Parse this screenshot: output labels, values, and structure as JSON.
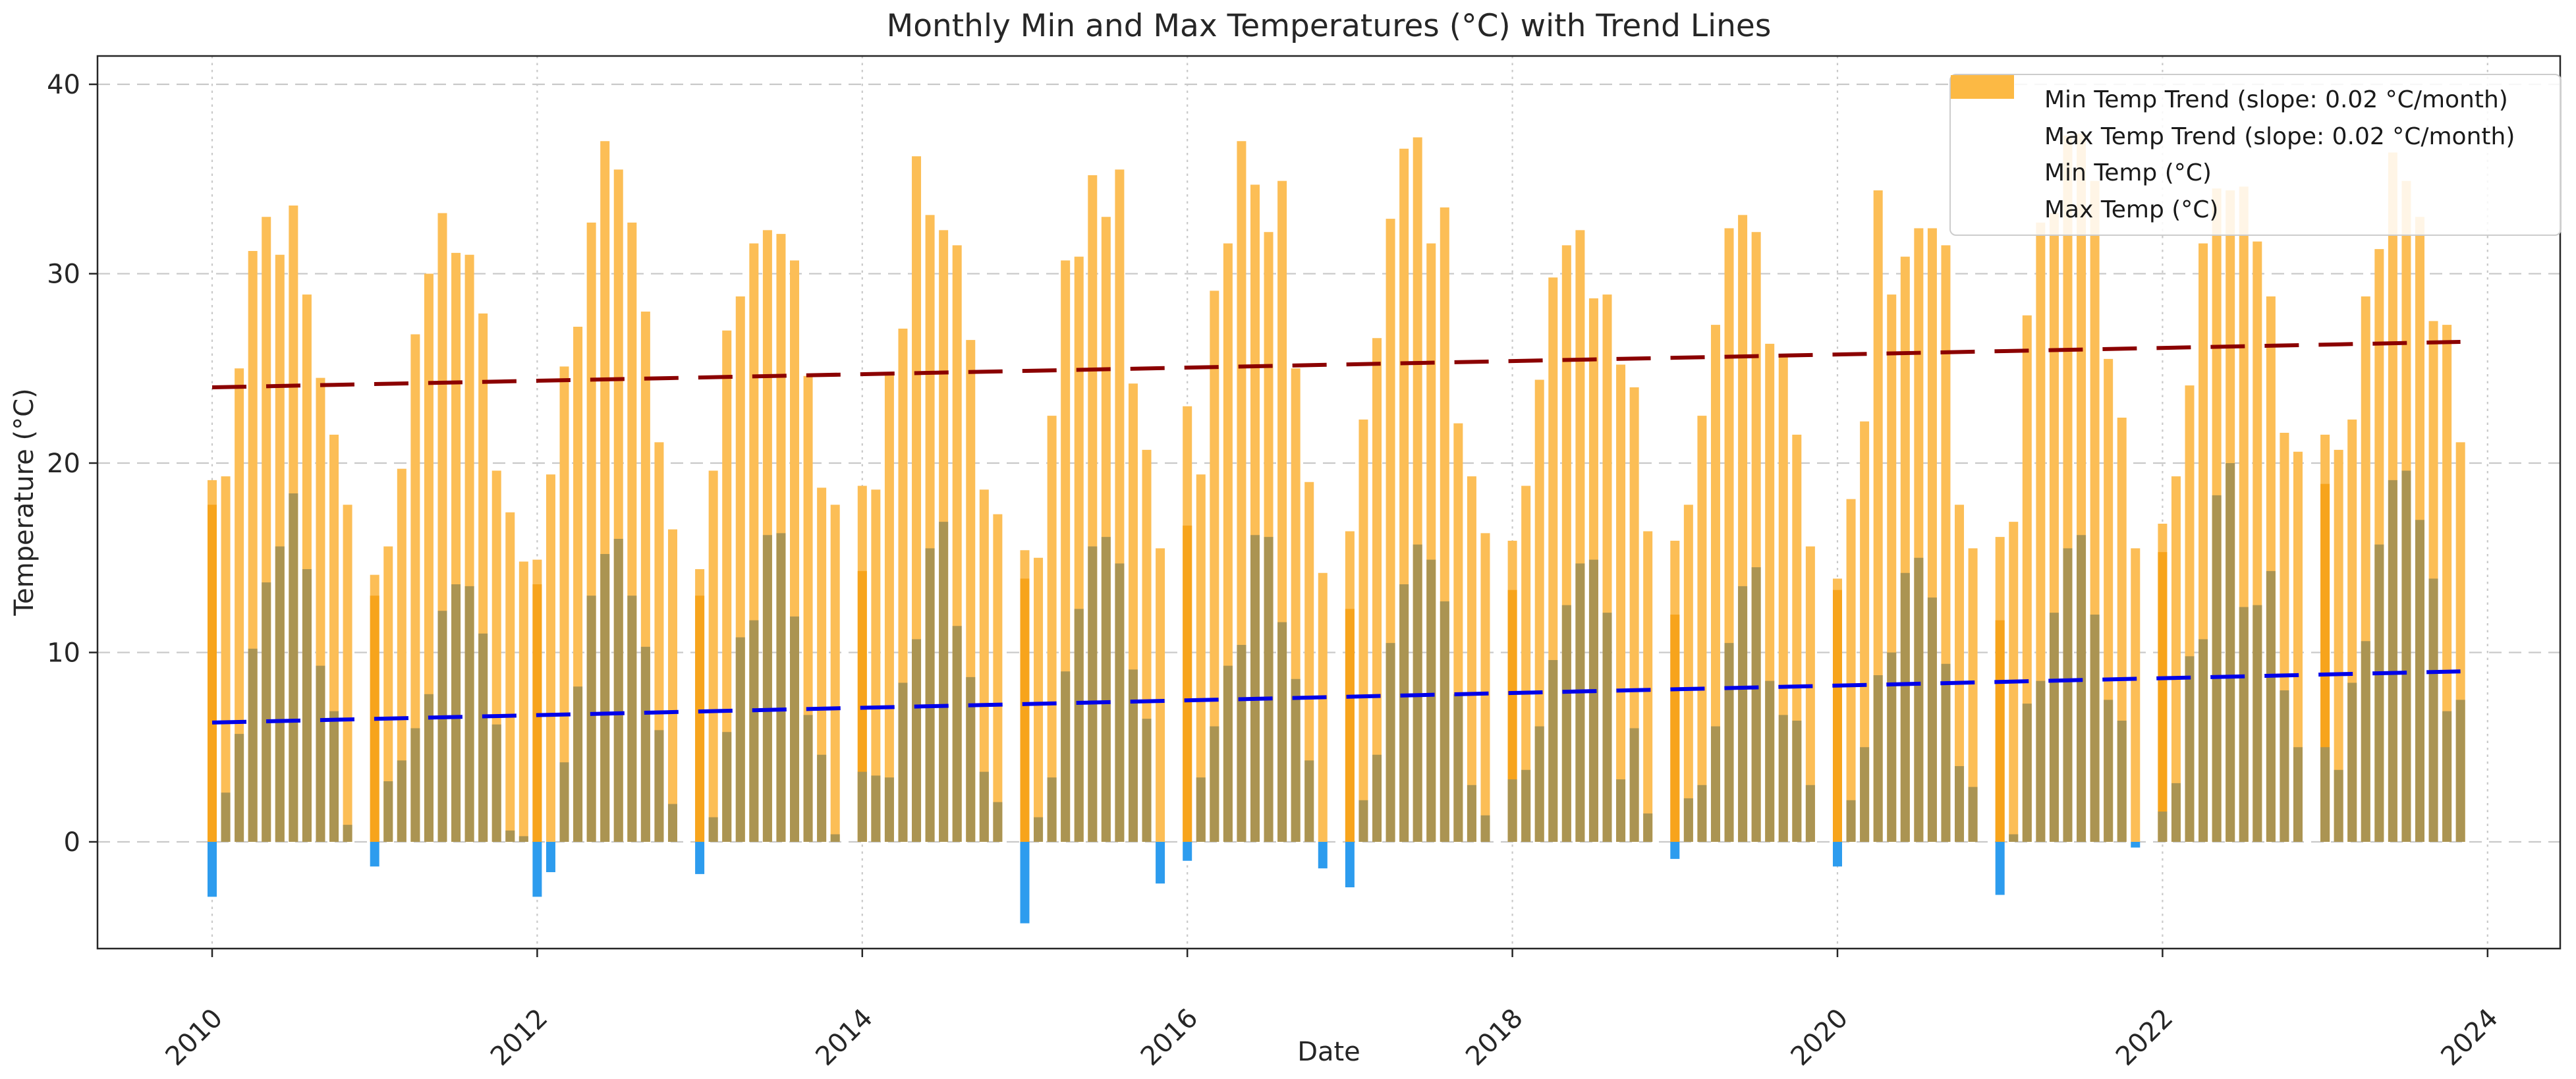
{
  "title": "Monthly Min and Max Temperatures (°C) with Trend Lines",
  "xlabel": "Date",
  "ylabel": "Temperature (°C)",
  "legend": {
    "items": [
      {
        "type": "dash",
        "color": "#0000e8",
        "label": "Min Temp Trend (slope: 0.02 °C/month)"
      },
      {
        "type": "dash",
        "color": "#8b0000",
        "label": "Max Temp Trend (slope: 0.02 °C/month)"
      },
      {
        "type": "patch",
        "color": "#2d9cee",
        "label": "Min Temp (°C)"
      },
      {
        "type": "patch",
        "color": "#fcb944",
        "label": "Max Temp (°C)"
      }
    ]
  },
  "colors": {
    "max_bar": "#fcbe56",
    "max_bar_overlap": "#f7a41c",
    "min_bar_positive": "#ab9452",
    "min_bar_negative": "#2d9cee",
    "min_trend": "#0000e8",
    "max_trend": "#8b0000",
    "grid": "#c9c9c9",
    "spine": "#262626",
    "text": "#262626"
  },
  "chart_data": {
    "type": "bar",
    "title": "Monthly Min and Max Temperatures (°C) with Trend Lines",
    "xlabel": "Date",
    "ylabel": "Temperature (°C)",
    "x_tick_labels": [
      "2010",
      "2012",
      "2014",
      "2016",
      "2018",
      "2020",
      "2022",
      "2024"
    ],
    "x_ticks": [
      2010,
      2012,
      2014,
      2016,
      2018,
      2020,
      2022,
      2024
    ],
    "y_ticks": [
      0,
      10,
      20,
      30,
      40
    ],
    "xlim": [
      2009.3,
      2024.45
    ],
    "ylim": [
      -5.6,
      41.5
    ],
    "grid": "dashed horizontal at y ticks, dotted vertical at x ticks",
    "legend_position": "upper right",
    "series_note": "max = Max Temp bar top (°C); min = Min Temp bar top (°C, olive where overlapping max bar, blue where negative); ovl = darker double-orange overlap segment on January bars; null = no bar drawn (missing December)",
    "months": [
      {
        "d": "2010-01",
        "max": 19.1,
        "min": -2.9,
        "ovl": 17.8
      },
      {
        "d": "2010-02",
        "max": 19.3,
        "min": 2.6
      },
      {
        "d": "2010-03",
        "max": 25.0,
        "min": 5.7
      },
      {
        "d": "2010-04",
        "max": 31.2,
        "min": 10.2
      },
      {
        "d": "2010-05",
        "max": 33.0,
        "min": 13.7
      },
      {
        "d": "2010-06",
        "max": 31.0,
        "min": 15.6
      },
      {
        "d": "2010-07",
        "max": 33.6,
        "min": 18.4
      },
      {
        "d": "2010-08",
        "max": 28.9,
        "min": 14.4
      },
      {
        "d": "2010-09",
        "max": 24.5,
        "min": 9.3
      },
      {
        "d": "2010-10",
        "max": 21.5,
        "min": 6.9
      },
      {
        "d": "2010-11",
        "max": 17.8,
        "min": 0.9
      },
      {
        "d": "2010-12",
        "max": null,
        "min": null
      },
      {
        "d": "2011-01",
        "max": 14.1,
        "min": -1.3,
        "ovl": 13.0
      },
      {
        "d": "2011-02",
        "max": 15.6,
        "min": 3.2
      },
      {
        "d": "2011-03",
        "max": 19.7,
        "min": 4.3
      },
      {
        "d": "2011-04",
        "max": 26.8,
        "min": 6.0
      },
      {
        "d": "2011-05",
        "max": 30.0,
        "min": 7.8
      },
      {
        "d": "2011-06",
        "max": 33.2,
        "min": 12.2
      },
      {
        "d": "2011-07",
        "max": 31.1,
        "min": 13.6
      },
      {
        "d": "2011-08",
        "max": 31.0,
        "min": 13.5
      },
      {
        "d": "2011-09",
        "max": 27.9,
        "min": 11.0
      },
      {
        "d": "2011-10",
        "max": 19.6,
        "min": 6.2
      },
      {
        "d": "2011-11",
        "max": 17.4,
        "min": 0.6
      },
      {
        "d": "2011-12",
        "max": 14.8,
        "min": 0.3
      },
      {
        "d": "2012-01",
        "max": 14.9,
        "min": -2.9,
        "ovl": 13.6
      },
      {
        "d": "2012-02",
        "max": 19.4,
        "min": -1.6
      },
      {
        "d": "2012-03",
        "max": 25.1,
        "min": 4.2
      },
      {
        "d": "2012-04",
        "max": 27.2,
        "min": 8.2
      },
      {
        "d": "2012-05",
        "max": 32.7,
        "min": 13.0
      },
      {
        "d": "2012-06",
        "max": 37.0,
        "min": 15.2
      },
      {
        "d": "2012-07",
        "max": 35.5,
        "min": 16.0
      },
      {
        "d": "2012-08",
        "max": 32.7,
        "min": 13.0
      },
      {
        "d": "2012-09",
        "max": 28.0,
        "min": 10.3
      },
      {
        "d": "2012-10",
        "max": 21.1,
        "min": 5.9
      },
      {
        "d": "2012-11",
        "max": 16.5,
        "min": 2.0
      },
      {
        "d": "2012-12",
        "max": null,
        "min": null
      },
      {
        "d": "2013-01",
        "max": 14.4,
        "min": -1.7,
        "ovl": 13.0
      },
      {
        "d": "2013-02",
        "max": 19.6,
        "min": 1.3
      },
      {
        "d": "2013-03",
        "max": 27.0,
        "min": 5.8
      },
      {
        "d": "2013-04",
        "max": 28.8,
        "min": 10.8
      },
      {
        "d": "2013-05",
        "max": 31.6,
        "min": 11.7
      },
      {
        "d": "2013-06",
        "max": 32.3,
        "min": 16.2
      },
      {
        "d": "2013-07",
        "max": 32.1,
        "min": 16.3
      },
      {
        "d": "2013-08",
        "max": 30.7,
        "min": 11.9
      },
      {
        "d": "2013-09",
        "max": 24.6,
        "min": 6.7
      },
      {
        "d": "2013-10",
        "max": 18.7,
        "min": 4.6
      },
      {
        "d": "2013-11",
        "max": 17.8,
        "min": 0.4
      },
      {
        "d": "2013-12",
        "max": null,
        "min": null
      },
      {
        "d": "2014-01",
        "max": 18.8,
        "min": 3.7,
        "ovl": 14.3
      },
      {
        "d": "2014-02",
        "max": 18.6,
        "min": 3.5
      },
      {
        "d": "2014-03",
        "max": 24.7,
        "min": 3.4
      },
      {
        "d": "2014-04",
        "max": 27.1,
        "min": 8.4
      },
      {
        "d": "2014-05",
        "max": 36.2,
        "min": 10.7
      },
      {
        "d": "2014-06",
        "max": 33.1,
        "min": 15.5
      },
      {
        "d": "2014-07",
        "max": 32.3,
        "min": 16.9
      },
      {
        "d": "2014-08",
        "max": 31.5,
        "min": 11.4
      },
      {
        "d": "2014-09",
        "max": 26.5,
        "min": 8.7
      },
      {
        "d": "2014-10",
        "max": 18.6,
        "min": 3.7
      },
      {
        "d": "2014-11",
        "max": 17.3,
        "min": 2.1
      },
      {
        "d": "2014-12",
        "max": null,
        "min": null
      },
      {
        "d": "2015-01",
        "max": 15.4,
        "min": -4.3,
        "ovl": 13.9
      },
      {
        "d": "2015-02",
        "max": 15.0,
        "min": 1.3
      },
      {
        "d": "2015-03",
        "max": 22.5,
        "min": 3.4
      },
      {
        "d": "2015-04",
        "max": 30.7,
        "min": 9.0
      },
      {
        "d": "2015-05",
        "max": 30.9,
        "min": 12.3
      },
      {
        "d": "2015-06",
        "max": 35.2,
        "min": 15.6
      },
      {
        "d": "2015-07",
        "max": 33.0,
        "min": 16.1
      },
      {
        "d": "2015-08",
        "max": 35.5,
        "min": 14.7
      },
      {
        "d": "2015-09",
        "max": 24.2,
        "min": 9.1
      },
      {
        "d": "2015-10",
        "max": 20.7,
        "min": 6.5
      },
      {
        "d": "2015-11",
        "max": 15.5,
        "min": -2.2
      },
      {
        "d": "2015-12",
        "max": null,
        "min": null
      },
      {
        "d": "2016-01",
        "max": 23.0,
        "min": -1.0,
        "ovl": 16.7
      },
      {
        "d": "2016-02",
        "max": 19.4,
        "min": 3.4
      },
      {
        "d": "2016-03",
        "max": 29.1,
        "min": 6.1
      },
      {
        "d": "2016-04",
        "max": 31.6,
        "min": 9.3
      },
      {
        "d": "2016-05",
        "max": 37.0,
        "min": 10.4
      },
      {
        "d": "2016-06",
        "max": 34.7,
        "min": 16.2
      },
      {
        "d": "2016-07",
        "max": 32.2,
        "min": 16.1
      },
      {
        "d": "2016-08",
        "max": 34.9,
        "min": 11.6
      },
      {
        "d": "2016-09",
        "max": 25.0,
        "min": 8.6
      },
      {
        "d": "2016-10",
        "max": 19.0,
        "min": 4.3
      },
      {
        "d": "2016-11",
        "max": 14.2,
        "min": -1.4
      },
      {
        "d": "2016-12",
        "max": null,
        "min": null
      },
      {
        "d": "2017-01",
        "max": 16.4,
        "min": -2.4,
        "ovl": 12.3
      },
      {
        "d": "2017-02",
        "max": 22.3,
        "min": 2.2
      },
      {
        "d": "2017-03",
        "max": 26.6,
        "min": 4.6
      },
      {
        "d": "2017-04",
        "max": 32.9,
        "min": 10.5
      },
      {
        "d": "2017-05",
        "max": 36.6,
        "min": 13.6
      },
      {
        "d": "2017-06",
        "max": 37.2,
        "min": 15.7
      },
      {
        "d": "2017-07",
        "max": 31.6,
        "min": 14.9
      },
      {
        "d": "2017-08",
        "max": 33.5,
        "min": 12.7
      },
      {
        "d": "2017-09",
        "max": 22.1,
        "min": 7.8
      },
      {
        "d": "2017-10",
        "max": 19.3,
        "min": 3.0
      },
      {
        "d": "2017-11",
        "max": 16.3,
        "min": 1.4
      },
      {
        "d": "2017-12",
        "max": null,
        "min": null
      },
      {
        "d": "2018-01",
        "max": 15.9,
        "min": 3.3,
        "ovl": 13.3
      },
      {
        "d": "2018-02",
        "max": 18.8,
        "min": 3.8
      },
      {
        "d": "2018-03",
        "max": 24.4,
        "min": 6.1
      },
      {
        "d": "2018-04",
        "max": 29.8,
        "min": 9.6
      },
      {
        "d": "2018-05",
        "max": 31.5,
        "min": 12.5
      },
      {
        "d": "2018-06",
        "max": 32.3,
        "min": 14.7
      },
      {
        "d": "2018-07",
        "max": 28.7,
        "min": 14.9
      },
      {
        "d": "2018-08",
        "max": 28.9,
        "min": 12.1
      },
      {
        "d": "2018-09",
        "max": 25.2,
        "min": 3.3
      },
      {
        "d": "2018-10",
        "max": 24.0,
        "min": 6.0
      },
      {
        "d": "2018-11",
        "max": 16.4,
        "min": 1.5
      },
      {
        "d": "2018-12",
        "max": null,
        "min": null
      },
      {
        "d": "2019-01",
        "max": 15.9,
        "min": -0.9,
        "ovl": 12.0
      },
      {
        "d": "2019-02",
        "max": 17.8,
        "min": 2.3
      },
      {
        "d": "2019-03",
        "max": 22.5,
        "min": 3.0
      },
      {
        "d": "2019-04",
        "max": 27.3,
        "min": 6.1
      },
      {
        "d": "2019-05",
        "max": 32.4,
        "min": 10.5
      },
      {
        "d": "2019-06",
        "max": 33.1,
        "min": 13.5
      },
      {
        "d": "2019-07",
        "max": 32.2,
        "min": 14.5
      },
      {
        "d": "2019-08",
        "max": 26.3,
        "min": 8.5
      },
      {
        "d": "2019-09",
        "max": 25.7,
        "min": 6.7
      },
      {
        "d": "2019-10",
        "max": 21.5,
        "min": 6.4
      },
      {
        "d": "2019-11",
        "max": 15.6,
        "min": 3.0
      },
      {
        "d": "2019-12",
        "max": null,
        "min": null
      },
      {
        "d": "2020-01",
        "max": 13.9,
        "min": -1.3,
        "ovl": 13.3
      },
      {
        "d": "2020-02",
        "max": 18.1,
        "min": 2.2
      },
      {
        "d": "2020-03",
        "max": 22.2,
        "min": 5.0
      },
      {
        "d": "2020-04",
        "max": 34.4,
        "min": 8.8
      },
      {
        "d": "2020-05",
        "max": 28.9,
        "min": 10.0
      },
      {
        "d": "2020-06",
        "max": 30.9,
        "min": 14.2
      },
      {
        "d": "2020-07",
        "max": 32.4,
        "min": 15.0
      },
      {
        "d": "2020-08",
        "max": 32.4,
        "min": 12.9
      },
      {
        "d": "2020-09",
        "max": 31.5,
        "min": 9.4
      },
      {
        "d": "2020-10",
        "max": 17.8,
        "min": 4.0
      },
      {
        "d": "2020-11",
        "max": 15.5,
        "min": 2.9
      },
      {
        "d": "2020-12",
        "max": null,
        "min": null
      },
      {
        "d": "2021-01",
        "max": 16.1,
        "min": -2.8,
        "ovl": 11.7
      },
      {
        "d": "2021-02",
        "max": 16.9,
        "min": 0.4
      },
      {
        "d": "2021-03",
        "max": 27.8,
        "min": 7.3
      },
      {
        "d": "2021-04",
        "max": 32.7,
        "min": 8.5
      },
      {
        "d": "2021-05",
        "max": 33.2,
        "min": 12.1
      },
      {
        "d": "2021-06",
        "max": 37.3,
        "min": 15.5
      },
      {
        "d": "2021-07",
        "max": 37.4,
        "min": 16.2
      },
      {
        "d": "2021-08",
        "max": 34.9,
        "min": 12.0
      },
      {
        "d": "2021-09",
        "max": 25.5,
        "min": 7.5
      },
      {
        "d": "2021-10",
        "max": 22.4,
        "min": 6.4
      },
      {
        "d": "2021-11",
        "max": 15.5,
        "min": -0.3
      },
      {
        "d": "2021-12",
        "max": null,
        "min": null
      },
      {
        "d": "2022-01",
        "max": 16.8,
        "min": 1.6,
        "ovl": 15.3
      },
      {
        "d": "2022-02",
        "max": 19.3,
        "min": 3.1
      },
      {
        "d": "2022-03",
        "max": 24.1,
        "min": 9.8
      },
      {
        "d": "2022-04",
        "max": 31.6,
        "min": 10.7
      },
      {
        "d": "2022-05",
        "max": 34.5,
        "min": 18.3
      },
      {
        "d": "2022-06",
        "max": 34.4,
        "min": 20.0
      },
      {
        "d": "2022-07",
        "max": 34.6,
        "min": 12.4
      },
      {
        "d": "2022-08",
        "max": 31.7,
        "min": 12.5
      },
      {
        "d": "2022-09",
        "max": 28.8,
        "min": 14.3
      },
      {
        "d": "2022-10",
        "max": 21.6,
        "min": 8.0
      },
      {
        "d": "2022-11",
        "max": 20.6,
        "min": 5.0
      },
      {
        "d": "2022-12",
        "max": null,
        "min": null
      },
      {
        "d": "2023-01",
        "max": 21.5,
        "min": 5.0,
        "ovl": 18.9
      },
      {
        "d": "2023-02",
        "max": 20.7,
        "min": 3.8
      },
      {
        "d": "2023-03",
        "max": 22.3,
        "min": 8.4
      },
      {
        "d": "2023-04",
        "max": 28.8,
        "min": 10.6
      },
      {
        "d": "2023-05",
        "max": 31.3,
        "min": 15.7
      },
      {
        "d": "2023-06",
        "max": 36.4,
        "min": 19.1
      },
      {
        "d": "2023-07",
        "max": 34.9,
        "min": 19.6
      },
      {
        "d": "2023-08",
        "max": 33.0,
        "min": 17.0
      },
      {
        "d": "2023-09",
        "max": 27.5,
        "min": 13.9
      },
      {
        "d": "2023-10",
        "max": 27.3,
        "min": 6.9
      },
      {
        "d": "2023-11",
        "max": 21.1,
        "min": 7.5
      },
      {
        "d": "2023-12",
        "max": null,
        "min": null
      }
    ],
    "trend_lines": [
      {
        "name": "Min Temp Trend",
        "slope_label": "0.02 °C/month",
        "x_start": 2010.0,
        "y_start": 6.3,
        "x_end": 2023.833,
        "y_end": 9.0,
        "color": "#0000e8",
        "style": "dashed"
      },
      {
        "name": "Max Temp Trend",
        "slope_label": "0.02 °C/month",
        "x_start": 2010.0,
        "y_start": 24.0,
        "x_end": 2023.833,
        "y_end": 26.4,
        "color": "#8b0000",
        "style": "dashed"
      }
    ]
  }
}
